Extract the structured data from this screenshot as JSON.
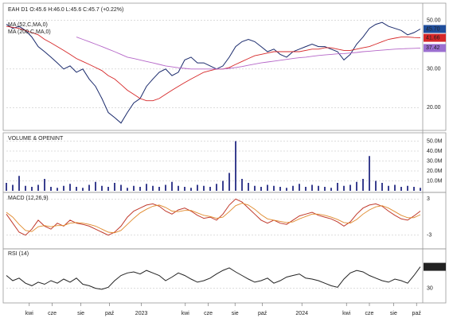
{
  "chart_data": [
    {
      "type": "line",
      "title": "EAH D1 O:45.6 H:46.0 L:45.6 C:45.7 (+0.22%)",
      "log_scale": true,
      "x": [
        0,
        1,
        2,
        3,
        4,
        5,
        6,
        7,
        8,
        9,
        10,
        11,
        12,
        13,
        14,
        15,
        16,
        17,
        18,
        19,
        20,
        21,
        22,
        23,
        24,
        25,
        26,
        27,
        28,
        29,
        30,
        31,
        32,
        33,
        34,
        35,
        36,
        37,
        38,
        39,
        40,
        41,
        42,
        43,
        44,
        45,
        46,
        47,
        48,
        49,
        50,
        51,
        52,
        53,
        54,
        55,
        56,
        57,
        58,
        59,
        60,
        61,
        62,
        63,
        64,
        65
      ],
      "xlim": [
        0,
        65
      ],
      "ylim": [
        16,
        58
      ],
      "yticks": [
        {
          "value": 50,
          "label": "50.00"
        },
        {
          "value": 30,
          "label": "30.00"
        },
        {
          "value": 20,
          "label": "20.00"
        }
      ],
      "series": [
        {
          "color": "#1a2a6c",
          "last_label": "45.70",
          "label_color": "#1f4e9c",
          "values": [
            48,
            46,
            47,
            45,
            42,
            38,
            36,
            34,
            32,
            30,
            31,
            29,
            30,
            27,
            25,
            22,
            19,
            18,
            17,
            19,
            21,
            22,
            25,
            27,
            29,
            30,
            28,
            29,
            33,
            34,
            32,
            32,
            31,
            30,
            31,
            34,
            38,
            40,
            41,
            40,
            38,
            36,
            37,
            35,
            34,
            36,
            37,
            38,
            39,
            38,
            38,
            37,
            36,
            33,
            35,
            39,
            42,
            46,
            48,
            49,
            47,
            46,
            45,
            43,
            44,
            45.7
          ]
        },
        {
          "name": "MA (52,C,MA,0)",
          "color": "#d62728",
          "last_label": "41.66",
          "label_color": "#d62728",
          "values": [
            47,
            46.5,
            46,
            45,
            44,
            43,
            41,
            39.5,
            38,
            36.5,
            35,
            33.5,
            32.5,
            31.5,
            30.5,
            29.5,
            28,
            27,
            25.5,
            24,
            23,
            22,
            21.5,
            21.5,
            22,
            23,
            24,
            25,
            26,
            27,
            28,
            29,
            29.5,
            30,
            30,
            30.5,
            31.5,
            32.5,
            33.5,
            34.5,
            35,
            35.5,
            36,
            36,
            36,
            36,
            36,
            36.5,
            37,
            37,
            37.5,
            37.5,
            37,
            36.5,
            36.5,
            37,
            37.5,
            38,
            39,
            40,
            41,
            41.5,
            42,
            42,
            41.8,
            41.66
          ]
        },
        {
          "name": "MA (200,C,MA,0)",
          "color": "#b566c8",
          "last_label": "37.42",
          "label_color": "#9b6fd0",
          "values": [
            null,
            null,
            null,
            null,
            null,
            null,
            null,
            null,
            null,
            null,
            null,
            42,
            41,
            40,
            39,
            38,
            37,
            36,
            35,
            34,
            33.5,
            33,
            32.5,
            32,
            31.5,
            31,
            30.7,
            30.4,
            30.2,
            30,
            30,
            30,
            30,
            30,
            30,
            30.2,
            30.5,
            30.8,
            31.2,
            31.6,
            32,
            32.3,
            32.6,
            32.9,
            33.2,
            33.5,
            33.8,
            34,
            34.3,
            34.6,
            34.8,
            35,
            35.2,
            35.3,
            35.5,
            35.7,
            36,
            36.2,
            36.4,
            36.6,
            36.8,
            37,
            37.1,
            37.2,
            37.3,
            37.42
          ]
        }
      ]
    },
    {
      "type": "bar",
      "title": "VOLUME & OPENINT",
      "color": "#3a3f8f",
      "x": [
        0,
        1,
        2,
        3,
        4,
        5,
        6,
        7,
        8,
        9,
        10,
        11,
        12,
        13,
        14,
        15,
        16,
        17,
        18,
        19,
        20,
        21,
        22,
        23,
        24,
        25,
        26,
        27,
        28,
        29,
        30,
        31,
        32,
        33,
        34,
        35,
        36,
        37,
        38,
        39,
        40,
        41,
        42,
        43,
        44,
        45,
        46,
        47,
        48,
        49,
        50,
        51,
        52,
        53,
        54,
        55,
        56,
        57,
        58,
        59,
        60,
        61,
        62,
        63,
        64,
        65
      ],
      "xlim": [
        0,
        65
      ],
      "ylim": [
        0,
        56
      ],
      "yticks": [
        {
          "value": 50,
          "label": "50.0M"
        },
        {
          "value": 40,
          "label": "40.0M"
        },
        {
          "value": 30,
          "label": "30.0M"
        },
        {
          "value": 20,
          "label": "20.0M"
        },
        {
          "value": 10,
          "label": "10.0M"
        }
      ],
      "values": [
        8,
        6,
        15,
        5,
        4,
        6,
        12,
        4,
        3,
        5,
        7,
        4,
        3,
        6,
        9,
        5,
        4,
        8,
        6,
        3,
        5,
        4,
        7,
        5,
        4,
        6,
        9,
        5,
        4,
        3,
        6,
        5,
        4,
        7,
        10,
        18,
        50,
        12,
        8,
        5,
        4,
        6,
        5,
        4,
        3,
        5,
        7,
        4,
        6,
        5,
        4,
        3,
        8,
        5,
        6,
        9,
        12,
        35,
        10,
        8,
        5,
        6,
        4,
        5,
        4,
        3
      ]
    },
    {
      "type": "line",
      "title": "MACD (12,26,9)",
      "x": [
        0,
        1,
        2,
        3,
        4,
        5,
        6,
        7,
        8,
        9,
        10,
        11,
        12,
        13,
        14,
        15,
        16,
        17,
        18,
        19,
        20,
        21,
        22,
        23,
        24,
        25,
        26,
        27,
        28,
        29,
        30,
        31,
        32,
        33,
        34,
        35,
        36,
        37,
        38,
        39,
        40,
        41,
        42,
        43,
        44,
        45,
        46,
        47,
        48,
        49,
        50,
        51,
        52,
        53,
        54,
        55,
        56,
        57,
        58,
        59,
        60,
        61,
        62,
        63,
        64,
        65
      ],
      "xlim": [
        0,
        65
      ],
      "ylim": [
        -5,
        3.7
      ],
      "yticks": [
        3,
        -3
      ],
      "series": [
        {
          "color": "#c0392b",
          "values": [
            0.5,
            -1,
            -2.5,
            -3,
            -2,
            -0.5,
            -1.5,
            -2,
            -1,
            -1.5,
            -0.5,
            -1,
            -1.2,
            -1.5,
            -2,
            -2.5,
            -3,
            -2.5,
            -1.5,
            0,
            1,
            1.5,
            2,
            2.2,
            1.8,
            1,
            0.5,
            1.2,
            1.5,
            1,
            0.3,
            -0.2,
            0,
            -0.5,
            0.5,
            2,
            3,
            2.5,
            1.5,
            0.5,
            -0.5,
            -1,
            -0.5,
            -1,
            -1.2,
            -0.5,
            0.2,
            0.5,
            0.8,
            0.3,
            0,
            -0.3,
            -0.8,
            -1.5,
            -0.8,
            0.5,
            1.5,
            2,
            2.2,
            1.8,
            1,
            0.3,
            -0.3,
            -0.5,
            0.2,
            1
          ]
        },
        {
          "color": "#e08a2c",
          "values": [
            0.8,
            0,
            -1.2,
            -2.2,
            -2.4,
            -1.6,
            -1.4,
            -1.6,
            -1.4,
            -1.4,
            -1,
            -0.9,
            -1,
            -1.2,
            -1.5,
            -2,
            -2.5,
            -2.6,
            -2.2,
            -1.2,
            -0.2,
            0.7,
            1.3,
            1.8,
            2,
            1.6,
            1,
            0.9,
            1.1,
            1.1,
            0.7,
            0.3,
            0.1,
            -0.2,
            0,
            0.9,
            1.9,
            2.3,
            2,
            1.3,
            0.4,
            -0.3,
            -0.5,
            -0.7,
            -0.9,
            -0.8,
            -0.3,
            0.1,
            0.5,
            0.5,
            0.3,
            0,
            -0.4,
            -0.9,
            -1,
            -0.4,
            0.5,
            1.2,
            1.7,
            1.9,
            1.5,
            0.9,
            0.3,
            -0.1,
            -0.1,
            0.4
          ]
        }
      ]
    },
    {
      "type": "line",
      "title": "RSI (14)",
      "x": [
        0,
        1,
        2,
        3,
        4,
        5,
        6,
        7,
        8,
        9,
        10,
        11,
        12,
        13,
        14,
        15,
        16,
        17,
        18,
        19,
        20,
        21,
        22,
        23,
        24,
        25,
        26,
        27,
        28,
        29,
        30,
        31,
        32,
        33,
        34,
        35,
        36,
        37,
        38,
        39,
        40,
        41,
        42,
        43,
        44,
        45,
        46,
        47,
        48,
        49,
        50,
        51,
        52,
        53,
        54,
        55,
        56,
        57,
        58,
        59,
        60,
        61,
        62,
        63,
        64,
        65
      ],
      "xlim": [
        0,
        65
      ],
      "ylim": [
        3,
        104
      ],
      "yticks": [
        30
      ],
      "xticks": [
        {
          "value": 3.6,
          "label": "kwi"
        },
        {
          "value": 7.2,
          "label": "cze"
        },
        {
          "value": 11.7,
          "label": "sie"
        },
        {
          "value": 16.2,
          "label": "paź"
        },
        {
          "value": 21.2,
          "label": "2023"
        },
        {
          "value": 28.1,
          "label": "kwi"
        },
        {
          "value": 31.7,
          "label": "cze"
        },
        {
          "value": 35.9,
          "label": "sie"
        },
        {
          "value": 40.2,
          "label": "paź"
        },
        {
          "value": 46.4,
          "label": "2024"
        },
        {
          "value": 53.4,
          "label": "kwi"
        },
        {
          "value": 57.0,
          "label": "cze"
        },
        {
          "value": 60.8,
          "label": "sie"
        },
        {
          "value": 64.4,
          "label": "paź"
        }
      ],
      "series": [
        {
          "color": "#222222",
          "label_color": "#222222",
          "last_label": "72",
          "values": [
            55,
            45,
            50,
            40,
            35,
            42,
            38,
            45,
            40,
            48,
            42,
            50,
            38,
            35,
            30,
            28,
            32,
            45,
            55,
            60,
            62,
            58,
            65,
            60,
            55,
            45,
            52,
            60,
            55,
            48,
            42,
            45,
            50,
            58,
            65,
            70,
            62,
            55,
            48,
            42,
            45,
            50,
            40,
            45,
            52,
            55,
            58,
            50,
            48,
            45,
            40,
            35,
            32,
            48,
            60,
            65,
            62,
            55,
            50,
            45,
            42,
            48,
            45,
            40,
            55,
            72
          ]
        }
      ]
    }
  ]
}
